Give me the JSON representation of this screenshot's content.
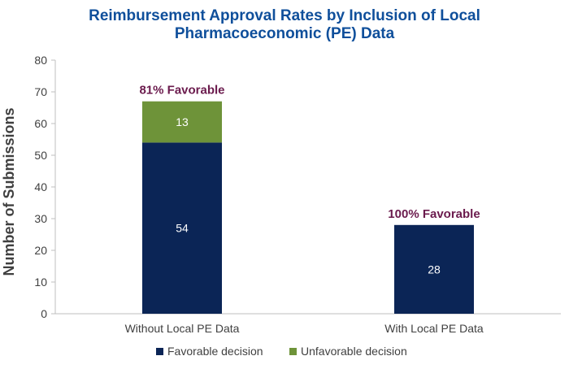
{
  "chart_data": {
    "type": "bar",
    "stacked": true,
    "title": "Reimbursement Approval Rates by Inclusion of Local Pharmacoeconomic (PE) Data",
    "title_lines": [
      "Reimbursement Approval Rates by Inclusion of Local",
      "Pharmacoeconomic (PE) Data"
    ],
    "xlabel": "",
    "ylabel": "Number of Submissions",
    "categories": [
      "Without Local PE Data",
      "With Local PE Data"
    ],
    "series": [
      {
        "name": "Favorable decision",
        "values": [
          54,
          28
        ],
        "color": "#0b2556"
      },
      {
        "name": "Unfavorable decision",
        "values": [
          13,
          0
        ],
        "color": "#6e9339"
      }
    ],
    "annotations": [
      "81% Favorable",
      "100% Favorable"
    ],
    "ylim": [
      0,
      80
    ],
    "yticks": [
      0,
      10,
      20,
      30,
      40,
      50,
      60,
      70,
      80
    ],
    "grid": false,
    "legend_position": "bottom",
    "colors": {
      "title": "#0f4f9b",
      "annotation": "#6b1b4d",
      "axis": "#bfbfbf",
      "text": "#404040"
    }
  }
}
